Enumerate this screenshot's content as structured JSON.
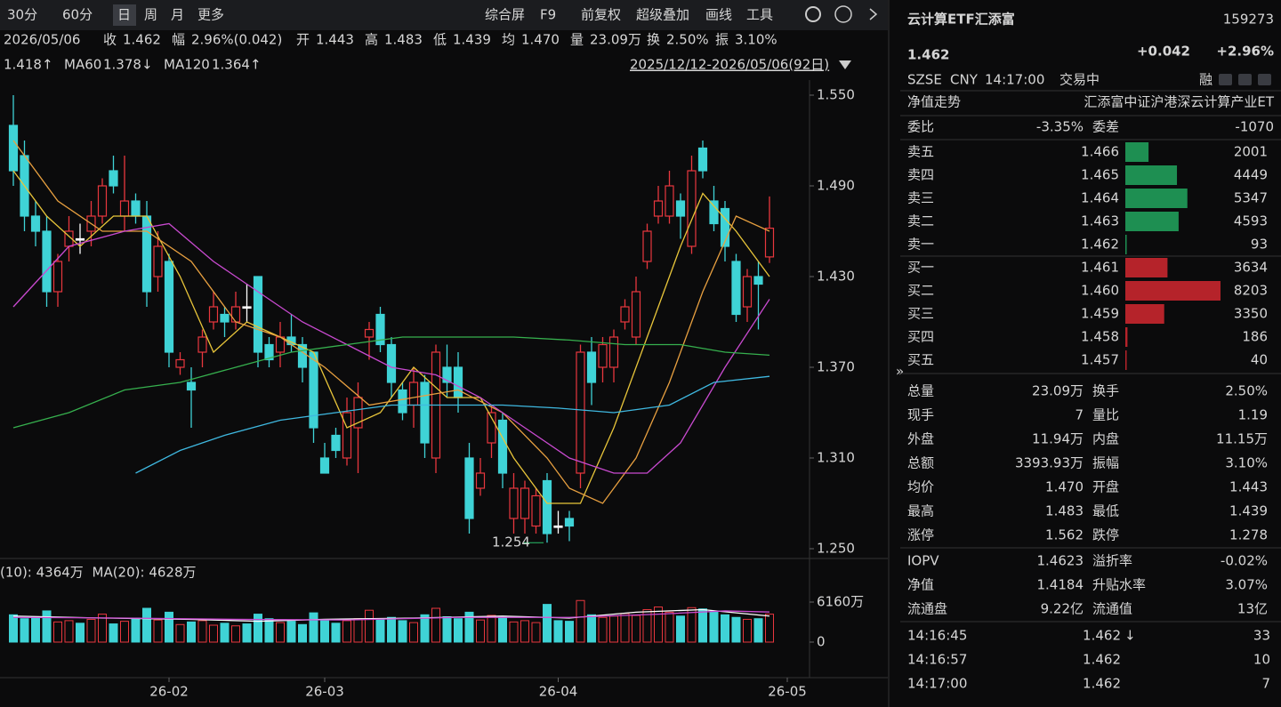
{
  "toolbar": {
    "periods": [
      "30分",
      "60分",
      "日",
      "周",
      "月",
      "更多"
    ],
    "tools": [
      "综合屏",
      "F9",
      "前复权",
      "超级叠加",
      "画线",
      "工具"
    ]
  },
  "info": {
    "date": "2026/05/06",
    "items": [
      [
        "收",
        "1.462"
      ],
      [
        "幅",
        "2.96%(0.042)"
      ],
      [
        "开",
        "1.443"
      ],
      [
        "高",
        "1.483"
      ],
      [
        "低",
        "1.439"
      ],
      [
        "均",
        "1.470"
      ],
      [
        "量",
        "23.09万"
      ],
      [
        "换",
        "2.50%"
      ],
      [
        "振",
        "3.10%"
      ]
    ],
    "ma": [
      [
        "",
        "1.418↑",
        "#d04ad8"
      ],
      [
        "MA60",
        "1.378↓",
        "#3fbf5a"
      ],
      [
        "MA120",
        "1.364↑",
        "#3fb8e0"
      ]
    ],
    "range": "2025/12/12-2026/05/06(92日)"
  },
  "chart_data": {
    "type": "candlestick",
    "ylim": [
      1.234,
      1.561
    ],
    "yticks": [
      {
        "value": 1.55,
        "label": "1.550"
      },
      {
        "value": 1.49,
        "label": "1.490"
      },
      {
        "value": 1.43,
        "label": "1.430"
      },
      {
        "value": 1.37,
        "label": "1.370"
      },
      {
        "value": 1.31,
        "label": "1.310"
      },
      {
        "value": 1.25,
        "label": "1.250"
      }
    ],
    "up_color": "#e8373e",
    "down_color": "#3fd3d6",
    "candles": [
      [
        1.53,
        1.55,
        1.49,
        1.5
      ],
      [
        1.51,
        1.52,
        1.46,
        1.47
      ],
      [
        1.47,
        1.48,
        1.45,
        1.46
      ],
      [
        1.46,
        1.47,
        1.41,
        1.42
      ],
      [
        1.42,
        1.445,
        1.41,
        1.44
      ],
      [
        1.45,
        1.47,
        1.44,
        1.46
      ],
      [
        1.455,
        1.465,
        1.445,
        1.455
      ],
      [
        1.46,
        1.48,
        1.45,
        1.47
      ],
      [
        1.47,
        1.495,
        1.465,
        1.49
      ],
      [
        1.5,
        1.51,
        1.485,
        1.49
      ],
      [
        1.47,
        1.51,
        1.46,
        1.48
      ],
      [
        1.48,
        1.485,
        1.465,
        1.47
      ],
      [
        1.47,
        1.48,
        1.41,
        1.42
      ],
      [
        1.43,
        1.46,
        1.42,
        1.45
      ],
      [
        1.44,
        1.445,
        1.37,
        1.38
      ],
      [
        1.37,
        1.38,
        1.365,
        1.375
      ],
      [
        1.36,
        1.37,
        1.33,
        1.355
      ],
      [
        1.38,
        1.395,
        1.37,
        1.39
      ],
      [
        1.4,
        1.42,
        1.395,
        1.41
      ],
      [
        1.405,
        1.41,
        1.39,
        1.4
      ],
      [
        1.4,
        1.42,
        1.395,
        1.41
      ],
      [
        1.41,
        1.425,
        1.4,
        1.41
      ],
      [
        1.43,
        1.43,
        1.37,
        1.38
      ],
      [
        1.385,
        1.39,
        1.37,
        1.375
      ],
      [
        1.38,
        1.4,
        1.37,
        1.39
      ],
      [
        1.39,
        1.405,
        1.38,
        1.385
      ],
      [
        1.385,
        1.39,
        1.36,
        1.37
      ],
      [
        1.38,
        1.38,
        1.32,
        1.33
      ],
      [
        1.31,
        1.32,
        1.3,
        1.3
      ],
      [
        1.325,
        1.33,
        1.31,
        1.315
      ],
      [
        1.31,
        1.35,
        1.305,
        1.34
      ],
      [
        1.33,
        1.36,
        1.3,
        1.35
      ],
      [
        1.39,
        1.4,
        1.375,
        1.395
      ],
      [
        1.405,
        1.41,
        1.38,
        1.385
      ],
      [
        1.385,
        1.39,
        1.35,
        1.36
      ],
      [
        1.355,
        1.36,
        1.335,
        1.34
      ],
      [
        1.345,
        1.37,
        1.33,
        1.36
      ],
      [
        1.36,
        1.365,
        1.31,
        1.32
      ],
      [
        1.31,
        1.385,
        1.3,
        1.38
      ],
      [
        1.37,
        1.385,
        1.35,
        1.36
      ],
      [
        1.37,
        1.38,
        1.34,
        1.35
      ],
      [
        1.31,
        1.32,
        1.26,
        1.27
      ],
      [
        1.29,
        1.31,
        1.285,
        1.3
      ],
      [
        1.32,
        1.345,
        1.31,
        1.34
      ],
      [
        1.335,
        1.34,
        1.29,
        1.3
      ],
      [
        1.27,
        1.3,
        1.26,
        1.29
      ],
      [
        1.27,
        1.295,
        1.26,
        1.29
      ],
      [
        1.265,
        1.29,
        1.26,
        1.285
      ],
      [
        1.295,
        1.3,
        1.254,
        1.26
      ],
      [
        1.265,
        1.275,
        1.26,
        1.265
      ],
      [
        1.27,
        1.275,
        1.255,
        1.265
      ],
      [
        1.3,
        1.385,
        1.29,
        1.38
      ],
      [
        1.38,
        1.39,
        1.345,
        1.36
      ],
      [
        1.37,
        1.39,
        1.36,
        1.385
      ],
      [
        1.37,
        1.395,
        1.36,
        1.39
      ],
      [
        1.4,
        1.415,
        1.395,
        1.41
      ],
      [
        1.39,
        1.43,
        1.385,
        1.42
      ],
      [
        1.44,
        1.465,
        1.435,
        1.46
      ],
      [
        1.47,
        1.49,
        1.465,
        1.48
      ],
      [
        1.47,
        1.5,
        1.465,
        1.49
      ],
      [
        1.48,
        1.485,
        1.455,
        1.47
      ],
      [
        1.45,
        1.51,
        1.445,
        1.5
      ],
      [
        1.515,
        1.52,
        1.495,
        1.5
      ],
      [
        1.48,
        1.49,
        1.46,
        1.465
      ],
      [
        1.475,
        1.48,
        1.44,
        1.45
      ],
      [
        1.44,
        1.445,
        1.4,
        1.405
      ],
      [
        1.41,
        1.435,
        1.4,
        1.43
      ],
      [
        1.43,
        1.44,
        1.395,
        1.425
      ],
      [
        1.443,
        1.483,
        1.439,
        1.462
      ]
    ],
    "ma_lines": [
      {
        "color": "#e8c53a",
        "points": [
          [
            0,
            1.5
          ],
          [
            3,
            1.47
          ],
          [
            6,
            1.45
          ],
          [
            9,
            1.47
          ],
          [
            12,
            1.47
          ],
          [
            15,
            1.43
          ],
          [
            18,
            1.38
          ],
          [
            21,
            1.4
          ],
          [
            24,
            1.39
          ],
          [
            27,
            1.38
          ],
          [
            30,
            1.33
          ],
          [
            33,
            1.34
          ],
          [
            36,
            1.37
          ],
          [
            39,
            1.35
          ],
          [
            42,
            1.35
          ],
          [
            45,
            1.31
          ],
          [
            48,
            1.28
          ],
          [
            51,
            1.28
          ],
          [
            54,
            1.33
          ],
          [
            57,
            1.39
          ],
          [
            60,
            1.45
          ],
          [
            62,
            1.485
          ],
          [
            65,
            1.46
          ],
          [
            68,
            1.43
          ]
        ]
      },
      {
        "color": "#e8a040",
        "points": [
          [
            0,
            1.52
          ],
          [
            4,
            1.48
          ],
          [
            8,
            1.46
          ],
          [
            12,
            1.46
          ],
          [
            16,
            1.44
          ],
          [
            20,
            1.4
          ],
          [
            24,
            1.39
          ],
          [
            28,
            1.37
          ],
          [
            32,
            1.345
          ],
          [
            36,
            1.35
          ],
          [
            40,
            1.355
          ],
          [
            44,
            1.34
          ],
          [
            48,
            1.31
          ],
          [
            50,
            1.29
          ],
          [
            53,
            1.28
          ],
          [
            56,
            1.31
          ],
          [
            59,
            1.36
          ],
          [
            62,
            1.42
          ],
          [
            65,
            1.47
          ],
          [
            68,
            1.46
          ]
        ]
      },
      {
        "color": "#c94ad0",
        "points": [
          [
            0,
            1.41
          ],
          [
            5,
            1.45
          ],
          [
            10,
            1.46
          ],
          [
            14,
            1.465
          ],
          [
            18,
            1.44
          ],
          [
            22,
            1.42
          ],
          [
            26,
            1.4
          ],
          [
            30,
            1.385
          ],
          [
            34,
            1.37
          ],
          [
            38,
            1.365
          ],
          [
            42,
            1.35
          ],
          [
            46,
            1.33
          ],
          [
            50,
            1.31
          ],
          [
            54,
            1.3
          ],
          [
            57,
            1.3
          ],
          [
            60,
            1.32
          ],
          [
            64,
            1.37
          ],
          [
            68,
            1.415
          ]
        ]
      },
      {
        "color": "#36b04e",
        "points": [
          [
            0,
            1.33
          ],
          [
            5,
            1.34
          ],
          [
            10,
            1.355
          ],
          [
            15,
            1.36
          ],
          [
            20,
            1.37
          ],
          [
            25,
            1.38
          ],
          [
            30,
            1.385
          ],
          [
            35,
            1.39
          ],
          [
            40,
            1.39
          ],
          [
            45,
            1.39
          ],
          [
            50,
            1.388
          ],
          [
            55,
            1.385
          ],
          [
            60,
            1.385
          ],
          [
            64,
            1.38
          ],
          [
            68,
            1.378
          ]
        ]
      },
      {
        "color": "#3fb8e0",
        "points": [
          [
            11,
            1.3
          ],
          [
            15,
            1.315
          ],
          [
            19,
            1.325
          ],
          [
            24,
            1.335
          ],
          [
            29,
            1.34
          ],
          [
            34,
            1.345
          ],
          [
            39,
            1.345
          ],
          [
            44,
            1.345
          ],
          [
            49,
            1.343
          ],
          [
            54,
            1.34
          ],
          [
            59,
            1.345
          ],
          [
            63,
            1.36
          ],
          [
            68,
            1.364
          ]
        ]
      }
    ],
    "low_label": {
      "index": 48,
      "value": 1.254,
      "label": "1.254"
    },
    "volume": {
      "ylim": [
        0,
        7000
      ],
      "yticks": [
        {
          "value": 6160,
          "label": "6160万"
        },
        0
      ],
      "title": [
        [
          "(10): 4364万",
          "#e8a040"
        ],
        [
          "MA(20): 4628万",
          "#c94ad0"
        ]
      ],
      "values": [
        4200,
        3600,
        3900,
        4800,
        3100,
        3300,
        2900,
        3500,
        4300,
        2800,
        3200,
        3700,
        5200,
        3400,
        4600,
        2700,
        3100,
        3300,
        2600,
        2900,
        2500,
        2800,
        4300,
        3600,
        3000,
        3200,
        2700,
        4500,
        3400,
        2900,
        3300,
        3600,
        4900,
        3500,
        3800,
        3300,
        3000,
        4200,
        5200,
        3900,
        3600,
        4600,
        3400,
        4100,
        3800,
        3100,
        3300,
        3000,
        5800,
        3300,
        3200,
        6400,
        4200,
        3800,
        4000,
        4400,
        4100,
        5000,
        5400,
        4600,
        4000,
        5300,
        5100,
        4600,
        4200,
        3800,
        3500,
        3600,
        4300
      ],
      "ma_lines": [
        {
          "color": "#ffffff",
          "points": [
            [
              0,
              4000
            ],
            [
              8,
              3700
            ],
            [
              16,
              3500
            ],
            [
              22,
              3200
            ],
            [
              28,
              3500
            ],
            [
              36,
              3700
            ],
            [
              44,
              4000
            ],
            [
              50,
              3700
            ],
            [
              56,
              4600
            ],
            [
              62,
              5000
            ],
            [
              68,
              4000
            ]
          ]
        },
        {
          "color": "#c94ad0",
          "points": [
            [
              0,
              3800
            ],
            [
              10,
              3700
            ],
            [
              20,
              3500
            ],
            [
              30,
              3400
            ],
            [
              40,
              3800
            ],
            [
              50,
              3800
            ],
            [
              58,
              4300
            ],
            [
              64,
              4800
            ],
            [
              68,
              4628
            ]
          ]
        }
      ]
    },
    "x_labels": [
      {
        "index": 14,
        "label": "26-02"
      },
      {
        "index": 28,
        "label": "26-03"
      },
      {
        "index": 49,
        "label": "26-04"
      },
      {
        "index": 70,
        "label": "26-05"
      }
    ]
  },
  "quote": {
    "name": "云计算ETF汇添富",
    "code": "159273",
    "price": "1.462",
    "change": "+0.042",
    "pct": "+2.96%",
    "meta": [
      "SZSE",
      "CNY",
      "14:17:00",
      "交易中"
    ],
    "tag": "融",
    "nav_title": "净值走势",
    "full_name": "汇添富中证沪港深云计算产业ET",
    "ratio": [
      "委比",
      "-3.35%",
      "委差",
      "-1070"
    ],
    "asks": [
      [
        "卖五",
        "1.466",
        2001
      ],
      [
        "卖四",
        "1.465",
        4449
      ],
      [
        "卖三",
        "1.464",
        5347
      ],
      [
        "卖二",
        "1.463",
        4593
      ],
      [
        "卖一",
        "1.462",
        93
      ]
    ],
    "bids": [
      [
        "买一",
        "1.461",
        3634
      ],
      [
        "买二",
        "1.460",
        8203
      ],
      [
        "买三",
        "1.459",
        3350
      ],
      [
        "买四",
        "1.458",
        186
      ],
      [
        "买五",
        "1.457",
        40
      ]
    ],
    "stats": [
      [
        "总量",
        "23.09万",
        "#d6d6d6",
        "换手",
        "2.50%",
        "#d6d6d6"
      ],
      [
        "现手",
        "7",
        "#d6d6d6",
        "量比",
        "1.19",
        "#d6d6d6"
      ],
      [
        "外盘",
        "11.94万",
        "#e8373e",
        "内盘",
        "11.15万",
        "#2bc06a"
      ],
      [
        "总额",
        "3393.93万",
        "#d6d6d6",
        "振幅",
        "3.10%",
        "#d6d6d6"
      ],
      [
        "均价",
        "1.470",
        "#e8373e",
        "开盘",
        "1.443",
        "#e8373e"
      ],
      [
        "最高",
        "1.483",
        "#e8373e",
        "最低",
        "1.439",
        "#e8373e"
      ],
      [
        "涨停",
        "1.562",
        "#e8373e",
        "跌停",
        "1.278",
        "#2bc06a"
      ]
    ],
    "iopv": [
      [
        "IOPV",
        "1.4623",
        "#d6d6d6",
        "溢折率",
        "-0.02%",
        "#2bc06a"
      ],
      [
        "净值",
        "1.4184",
        "#2bc06a",
        "升贴水率",
        "3.07%",
        "#e8373e"
      ],
      [
        "流通盘",
        "9.22亿",
        "#d6d6d6",
        "流通值",
        "13亿",
        "#d6d6d6"
      ]
    ],
    "ticks": [
      [
        "14:16:45",
        "1.462",
        33,
        "↓"
      ],
      [
        "14:16:57",
        "1.462",
        10,
        ""
      ],
      [
        "14:17:00",
        "1.462",
        7,
        ""
      ]
    ]
  }
}
